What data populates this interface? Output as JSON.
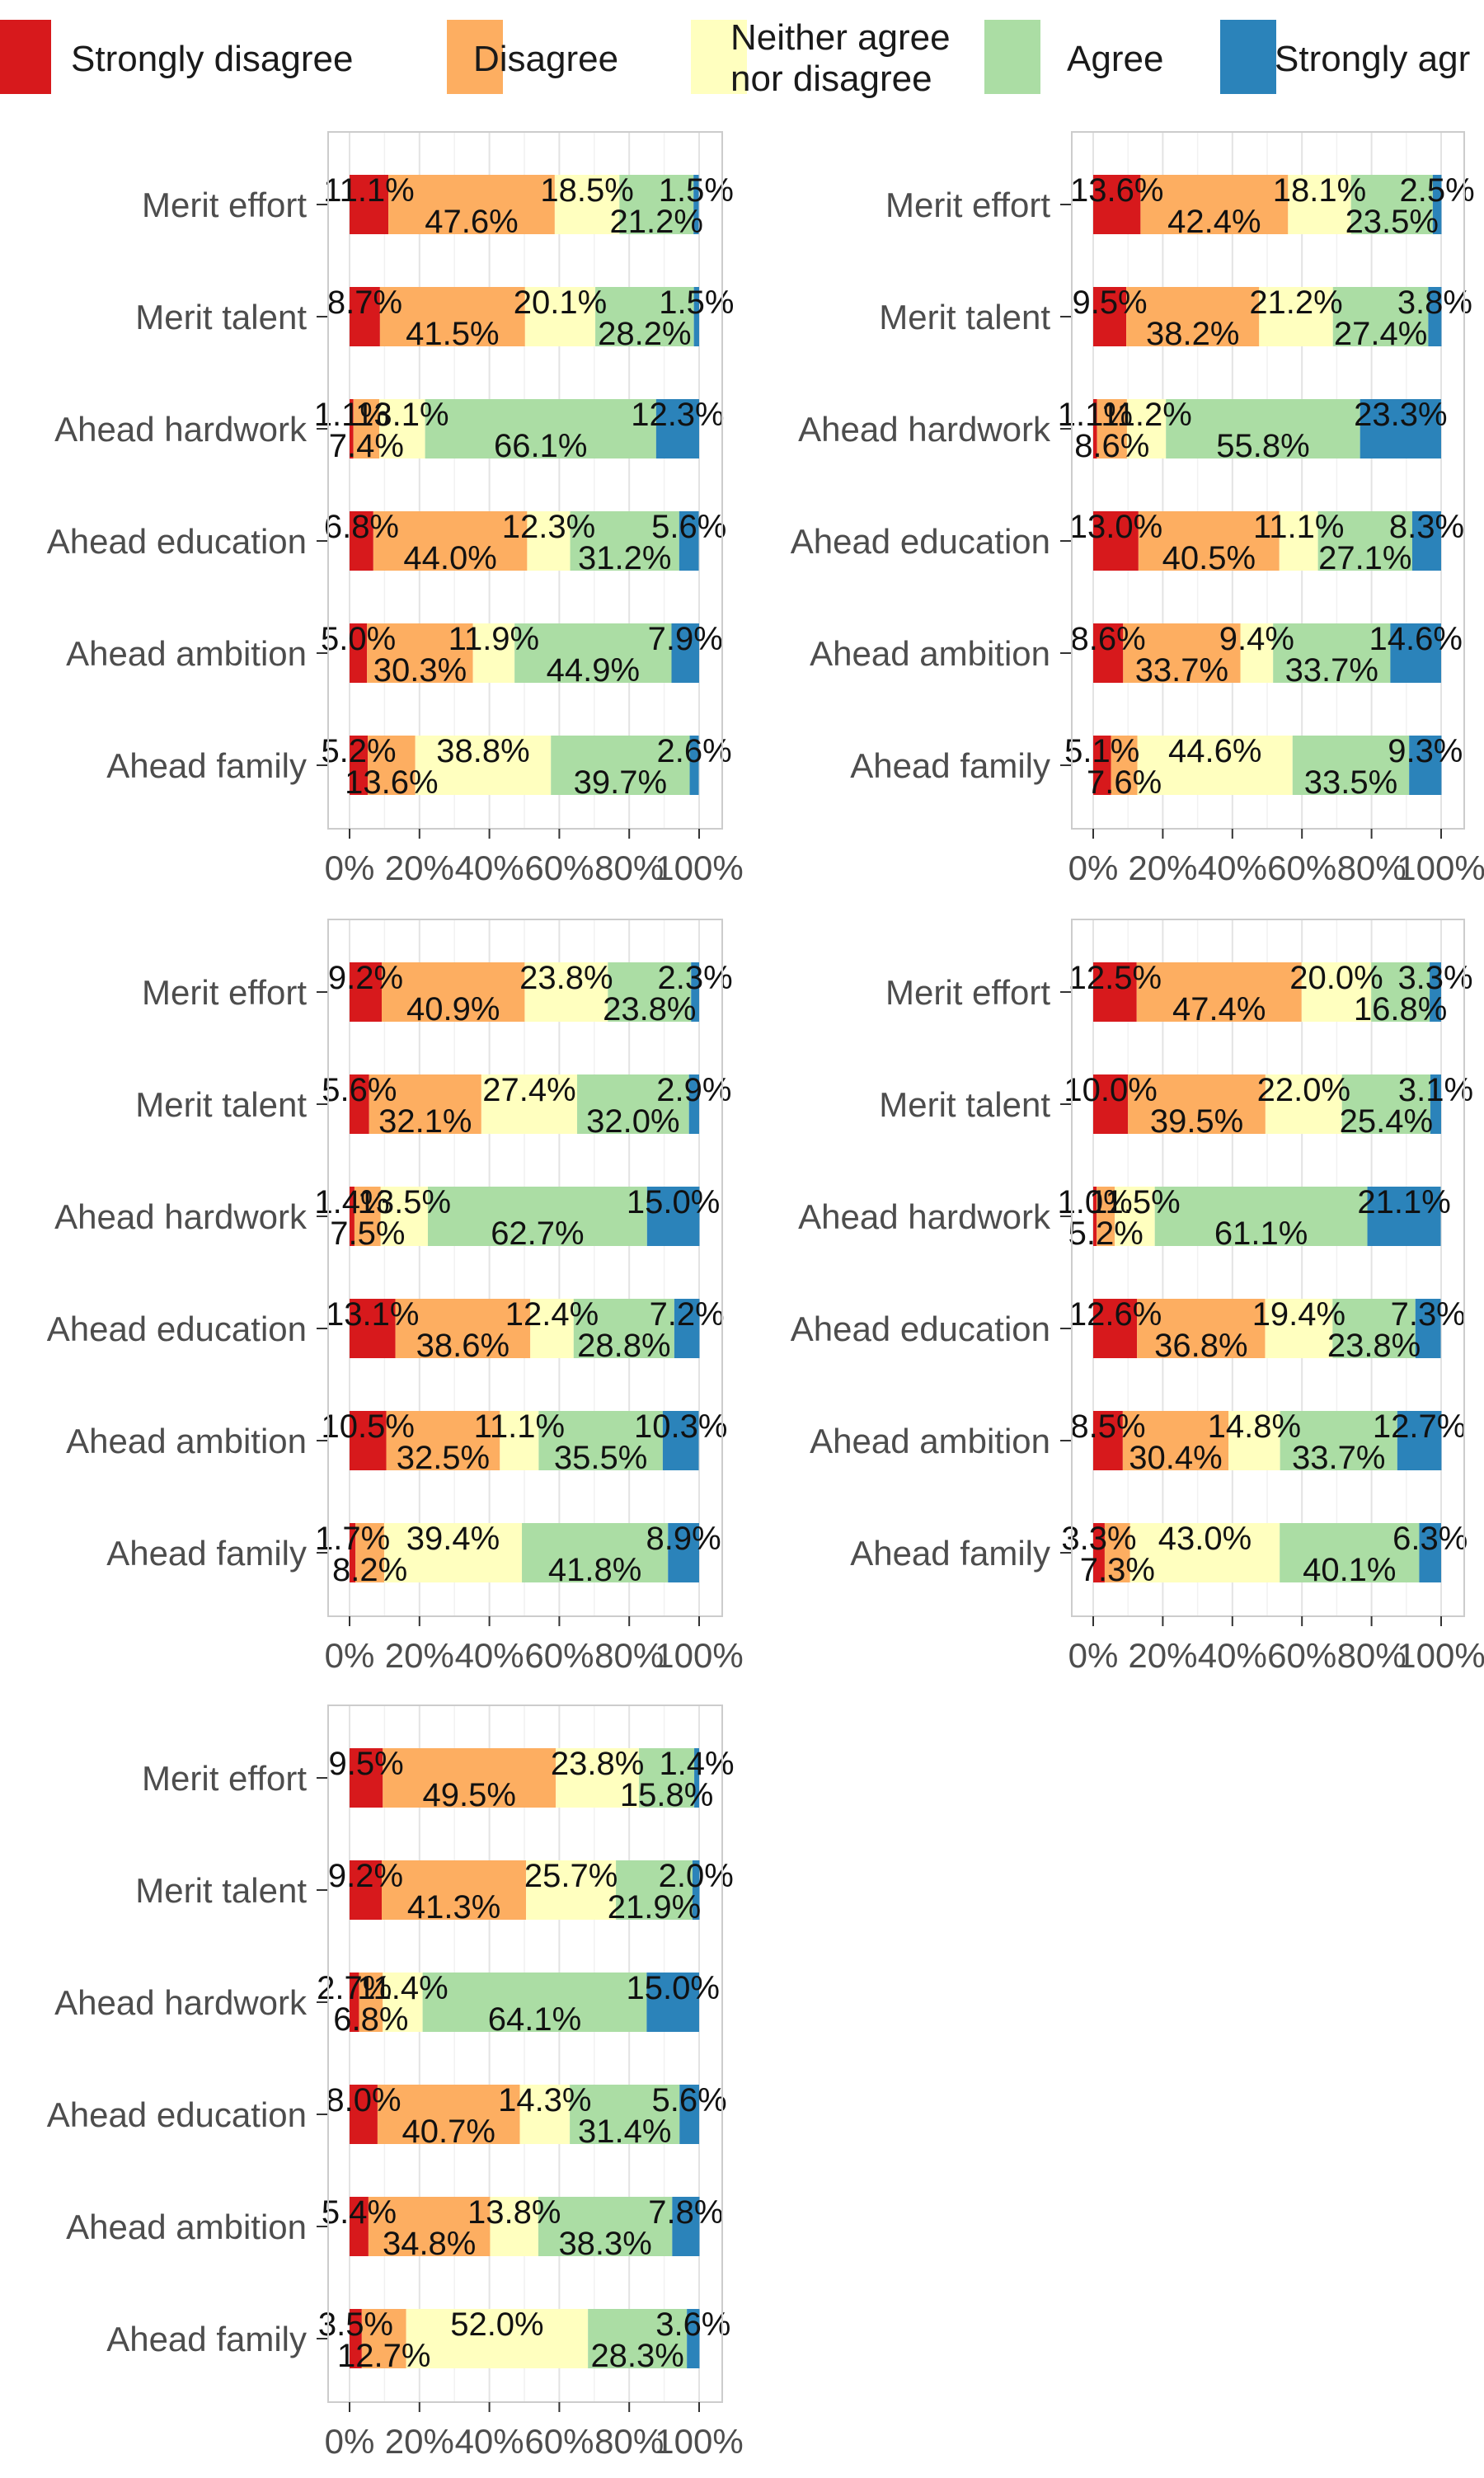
{
  "legend": {
    "placement": "top",
    "entries": [
      {
        "label_lines": [
          "Strongly disagree"
        ],
        "color": "#d7191c"
      },
      {
        "label_lines": [
          "Disagree"
        ],
        "color": "#fdae61"
      },
      {
        "label_lines": [
          "Neither agree",
          "nor disagree"
        ],
        "color": "#ffffbf"
      },
      {
        "label_lines": [
          "Agree"
        ],
        "color": "#abdda4"
      },
      {
        "label_lines": [
          "Strongly agr"
        ],
        "color": "#2b83ba"
      }
    ]
  },
  "chart_data": [
    {
      "type": "bar",
      "orientation": "horizontal",
      "stacked": true,
      "categories": [
        "Merit effort",
        "Merit talent",
        "Ahead hardwork",
        "Ahead education",
        "Ahead ambition",
        "Ahead family"
      ],
      "series": [
        {
          "name": "Strongly disagree",
          "values": [
            11.1,
            8.7,
            1.1,
            6.8,
            5.0,
            5.2
          ]
        },
        {
          "name": "Disagree",
          "values": [
            47.6,
            41.5,
            7.4,
            44.0,
            30.3,
            13.6
          ]
        },
        {
          "name": "Neither agree nor disagree",
          "values": [
            18.5,
            20.1,
            13.1,
            12.3,
            11.9,
            38.8
          ]
        },
        {
          "name": "Agree",
          "values": [
            21.2,
            28.2,
            66.1,
            31.2,
            44.9,
            39.7
          ]
        },
        {
          "name": "Strongly agree",
          "values": [
            1.5,
            1.5,
            12.3,
            5.6,
            7.9,
            2.6
          ]
        }
      ],
      "xlim": [
        0,
        100
      ],
      "xticks": [
        "0%",
        "20%",
        "40%",
        "60%",
        "80%",
        "100%"
      ],
      "grid": true
    },
    {
      "type": "bar",
      "orientation": "horizontal",
      "stacked": true,
      "categories": [
        "Merit effort",
        "Merit talent",
        "Ahead hardwork",
        "Ahead education",
        "Ahead ambition",
        "Ahead family"
      ],
      "series": [
        {
          "name": "Strongly disagree",
          "values": [
            13.6,
            9.5,
            1.1,
            13.0,
            8.6,
            5.1
          ]
        },
        {
          "name": "Disagree",
          "values": [
            42.4,
            38.2,
            8.6,
            40.5,
            33.7,
            7.6
          ]
        },
        {
          "name": "Neither agree nor disagree",
          "values": [
            18.1,
            21.2,
            11.2,
            11.1,
            9.4,
            44.6
          ]
        },
        {
          "name": "Agree",
          "values": [
            23.5,
            27.4,
            55.8,
            27.1,
            33.7,
            33.5
          ]
        },
        {
          "name": "Strongly agree",
          "values": [
            2.5,
            3.8,
            23.3,
            8.3,
            14.6,
            9.3
          ]
        }
      ],
      "xlim": [
        0,
        100
      ],
      "xticks": [
        "0%",
        "20%",
        "40%",
        "60%",
        "80%",
        "100%"
      ],
      "grid": true
    },
    {
      "type": "bar",
      "orientation": "horizontal",
      "stacked": true,
      "categories": [
        "Merit effort",
        "Merit talent",
        "Ahead hardwork",
        "Ahead education",
        "Ahead ambition",
        "Ahead family"
      ],
      "series": [
        {
          "name": "Strongly disagree",
          "values": [
            9.2,
            5.6,
            1.4,
            13.1,
            10.5,
            1.7
          ]
        },
        {
          "name": "Disagree",
          "values": [
            40.9,
            32.1,
            7.5,
            38.6,
            32.5,
            8.2
          ]
        },
        {
          "name": "Neither agree nor disagree",
          "values": [
            23.8,
            27.4,
            13.5,
            12.4,
            11.1,
            39.4
          ]
        },
        {
          "name": "Agree",
          "values": [
            23.8,
            32.0,
            62.7,
            28.8,
            35.5,
            41.8
          ]
        },
        {
          "name": "Strongly agree",
          "values": [
            2.3,
            2.9,
            15.0,
            7.2,
            10.3,
            8.9
          ]
        }
      ],
      "xlim": [
        0,
        100
      ],
      "xticks": [
        "0%",
        "20%",
        "40%",
        "60%",
        "80%",
        "100%"
      ],
      "grid": true
    },
    {
      "type": "bar",
      "orientation": "horizontal",
      "stacked": true,
      "categories": [
        "Merit effort",
        "Merit talent",
        "Ahead hardwork",
        "Ahead education",
        "Ahead ambition",
        "Ahead family"
      ],
      "series": [
        {
          "name": "Strongly disagree",
          "values": [
            12.5,
            10.0,
            1.0,
            12.6,
            8.5,
            3.3
          ]
        },
        {
          "name": "Disagree",
          "values": [
            47.4,
            39.5,
            5.2,
            36.8,
            30.4,
            7.3
          ]
        },
        {
          "name": "Neither agree nor disagree",
          "values": [
            20.0,
            22.0,
            11.5,
            19.4,
            14.8,
            43.0
          ]
        },
        {
          "name": "Agree",
          "values": [
            16.8,
            25.4,
            61.1,
            23.8,
            33.7,
            40.1
          ]
        },
        {
          "name": "Strongly agree",
          "values": [
            3.3,
            3.1,
            21.1,
            7.3,
            12.7,
            6.3
          ]
        }
      ],
      "xlim": [
        0,
        100
      ],
      "xticks": [
        "0%",
        "20%",
        "40%",
        "60%",
        "80%",
        "100%"
      ],
      "grid": true
    },
    {
      "type": "bar",
      "orientation": "horizontal",
      "stacked": true,
      "categories": [
        "Merit effort",
        "Merit talent",
        "Ahead hardwork",
        "Ahead education",
        "Ahead ambition",
        "Ahead family"
      ],
      "series": [
        {
          "name": "Strongly disagree",
          "values": [
            9.5,
            9.2,
            2.7,
            8.0,
            5.4,
            3.5
          ]
        },
        {
          "name": "Disagree",
          "values": [
            49.5,
            41.3,
            6.8,
            40.7,
            34.8,
            12.7
          ]
        },
        {
          "name": "Neither agree nor disagree",
          "values": [
            23.8,
            25.7,
            11.4,
            14.3,
            13.8,
            52.0
          ]
        },
        {
          "name": "Agree",
          "values": [
            15.8,
            21.9,
            64.1,
            31.4,
            38.3,
            28.3
          ]
        },
        {
          "name": "Strongly agree",
          "values": [
            1.4,
            2.0,
            15.0,
            5.6,
            7.8,
            3.6
          ]
        }
      ],
      "xlim": [
        0,
        100
      ],
      "xticks": [
        "0%",
        "20%",
        "40%",
        "60%",
        "80%",
        "100%"
      ],
      "grid": true
    }
  ]
}
